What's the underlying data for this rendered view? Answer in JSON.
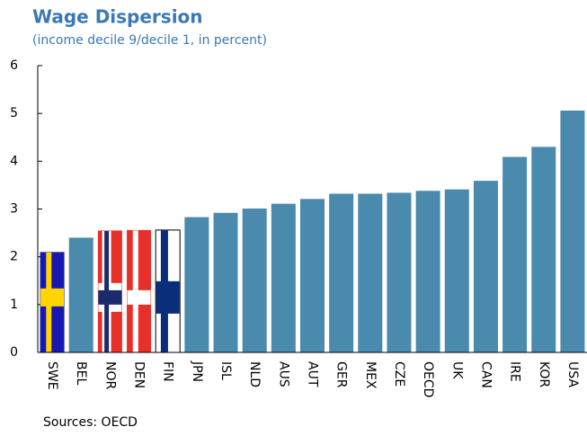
{
  "chart_data": {
    "type": "bar",
    "title": "Wage Dispersion",
    "subtitle": "(income decile 9/decile 1, in percent)",
    "source": "Sources: OECD",
    "categories": [
      "SWE",
      "BEL",
      "NOR",
      "DEN",
      "FIN",
      "JPN",
      "ISL",
      "NLD",
      "AUS",
      "AUT",
      "GER",
      "MEX",
      "CZE",
      "OECD",
      "UK",
      "CAN",
      "IRE",
      "KOR",
      "USA"
    ],
    "values": [
      2.1,
      2.4,
      2.55,
      2.56,
      2.56,
      2.83,
      2.92,
      3.01,
      3.11,
      3.21,
      3.32,
      3.32,
      3.34,
      3.38,
      3.41,
      3.59,
      4.09,
      4.3,
      5.06
    ],
    "colors": [
      "#1818b0",
      "#4a8aad",
      "#e8302a",
      "#e8302a",
      "#ffffff",
      "#4a8aad",
      "#4a8aad",
      "#4a8aad",
      "#4a8aad",
      "#4a8aad",
      "#4a8aad",
      "#4a8aad",
      "#4a8aad",
      "#4a8aad",
      "#4a8aad",
      "#4a8aad",
      "#4a8aad",
      "#4a8aad",
      "#4a8aad"
    ],
    "ylim": [
      0,
      6
    ],
    "yticks": [
      0,
      1,
      2,
      3,
      4,
      5,
      6
    ]
  }
}
